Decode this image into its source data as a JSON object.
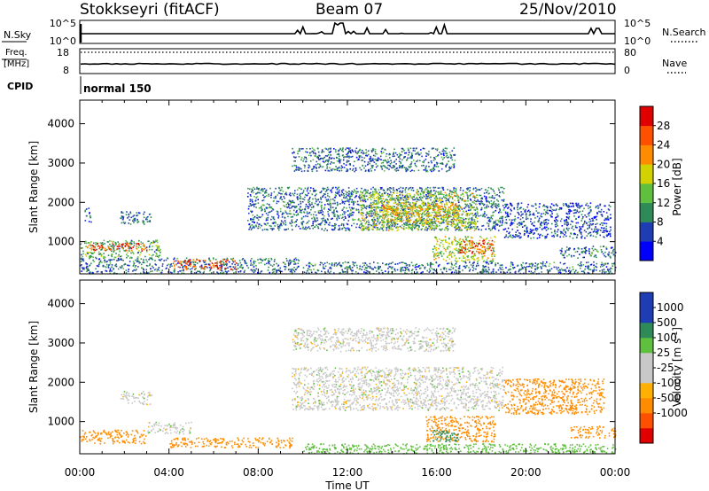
{
  "header": {
    "station": "Stokkseyri (fitACF)",
    "beam": "Beam 07",
    "date": "25/Nov/2010"
  },
  "status_panels": {
    "nsky_label": "N.Sky",
    "nsky_ticks": [
      "10^5",
      "10^0"
    ],
    "nsearch_label": "N.Search",
    "nsearch_ticks": [
      "10^5",
      "10^0"
    ],
    "freq_label": "Freq.",
    "freq_unit": "[MHz]",
    "freq_ticks": [
      "18",
      "8"
    ],
    "nave_label": "Nave",
    "nave_ticks": [
      "80",
      "0"
    ],
    "cpid_label": "CPID",
    "cpid_value": "normal 150"
  },
  "colors": {
    "power_scale": [
      "#0000ff",
      "#1e3cb4",
      "#2e8b57",
      "#5fbf3f",
      "#d2d200",
      "#ff8c00",
      "#ff5000",
      "#e00000"
    ],
    "velocity_scale": [
      "#e00000",
      "#ff5000",
      "#ff8c00",
      "#ffb000",
      "#c8c8c8",
      "#c8c8c8",
      "#5fbf3f",
      "#2e8b57",
      "#1e3cb4",
      "#1e3cb4"
    ]
  },
  "chart_data": [
    {
      "type": "heatmap",
      "title": "",
      "xlabel": "Time UT",
      "ylabel": "Slant Range [km]",
      "x_ticks": [
        "00:00",
        "04:00",
        "08:00",
        "12:00",
        "16:00",
        "20:00",
        "00:00"
      ],
      "xlim_hours": [
        0,
        24
      ],
      "y_ticks": [
        1000,
        2000,
        3000,
        4000
      ],
      "ylim": [
        180,
        4600
      ],
      "colorbar_label": "Power [dB]",
      "colorbar_ticks": [
        4,
        8,
        12,
        16,
        20,
        24,
        28
      ],
      "colorbar_range": [
        0,
        32
      ],
      "regions": [
        {
          "t0": 0.0,
          "t1": 9.8,
          "r0": 200,
          "r1": 600,
          "value": 8
        },
        {
          "t0": 0.0,
          "t1": 3.6,
          "r0": 600,
          "r1": 1050,
          "value": 12
        },
        {
          "t0": 0.3,
          "t1": 3.0,
          "r0": 780,
          "r1": 980,
          "value": 26
        },
        {
          "t0": 4.2,
          "t1": 7.0,
          "r0": 300,
          "r1": 560,
          "value": 26
        },
        {
          "t0": 1.8,
          "t1": 3.2,
          "r0": 1450,
          "r1": 1780,
          "value": 8
        },
        {
          "t0": 0.2,
          "t1": 0.5,
          "r0": 1500,
          "r1": 1900,
          "value": 6
        },
        {
          "t0": 7.5,
          "t1": 19.0,
          "r0": 1300,
          "r1": 2400,
          "value": 8
        },
        {
          "t0": 12.5,
          "t1": 17.8,
          "r0": 1300,
          "r1": 2300,
          "value": 16
        },
        {
          "t0": 13.5,
          "t1": 17.0,
          "r0": 1500,
          "r1": 2000,
          "value": 20
        },
        {
          "t0": 15.8,
          "t1": 18.6,
          "r0": 500,
          "r1": 1150,
          "value": 16
        },
        {
          "t0": 17.0,
          "t1": 18.5,
          "r0": 700,
          "r1": 1050,
          "value": 26
        },
        {
          "t0": 9.5,
          "t1": 16.8,
          "r0": 2800,
          "r1": 3400,
          "value": 8
        },
        {
          "t0": 19.0,
          "t1": 23.8,
          "r0": 1100,
          "r1": 2000,
          "value": 6
        },
        {
          "t0": 21.5,
          "t1": 24.0,
          "r0": 600,
          "r1": 900,
          "value": 8
        },
        {
          "t0": 10.0,
          "t1": 24.0,
          "r0": 200,
          "r1": 500,
          "value": 8
        }
      ]
    },
    {
      "type": "heatmap",
      "title": "",
      "xlabel": "Time UT",
      "ylabel": "Slant Range [km]",
      "x_ticks": [
        "00:00",
        "04:00",
        "08:00",
        "12:00",
        "16:00",
        "20:00",
        "00:00"
      ],
      "xlim_hours": [
        0,
        24
      ],
      "y_ticks": [
        1000,
        2000,
        3000,
        4000
      ],
      "ylim": [
        180,
        4600
      ],
      "colorbar_label": "Velocity [m s^-1]",
      "colorbar_ticks": [
        "1000",
        "500",
        "100",
        "25",
        "-25",
        "-100",
        "-500",
        "-1000"
      ],
      "regions": [
        {
          "t0": 0.0,
          "t1": 3.0,
          "r0": 450,
          "r1": 800,
          "value": -300
        },
        {
          "t0": 3.0,
          "t1": 5.0,
          "r0": 700,
          "r1": 1000,
          "value": 0
        },
        {
          "t0": 4.0,
          "t1": 9.5,
          "r0": 350,
          "r1": 600,
          "value": -300
        },
        {
          "t0": 1.8,
          "t1": 3.2,
          "r0": 1450,
          "r1": 1780,
          "value": 0
        },
        {
          "t0": 9.5,
          "t1": 19.0,
          "r0": 1300,
          "r1": 2400,
          "value": 0
        },
        {
          "t0": 9.5,
          "t1": 16.8,
          "r0": 2800,
          "r1": 3400,
          "value": 0
        },
        {
          "t0": 15.5,
          "t1": 18.6,
          "r0": 500,
          "r1": 1150,
          "value": -300
        },
        {
          "t0": 15.8,
          "t1": 17.0,
          "r0": 500,
          "r1": 800,
          "value": 200
        },
        {
          "t0": 19.0,
          "t1": 23.5,
          "r0": 1200,
          "r1": 2100,
          "value": -400
        },
        {
          "t0": 22.0,
          "t1": 24.0,
          "r0": 600,
          "r1": 900,
          "value": -400
        },
        {
          "t0": 10.0,
          "t1": 24.0,
          "r0": 200,
          "r1": 450,
          "value": 60
        }
      ]
    }
  ]
}
